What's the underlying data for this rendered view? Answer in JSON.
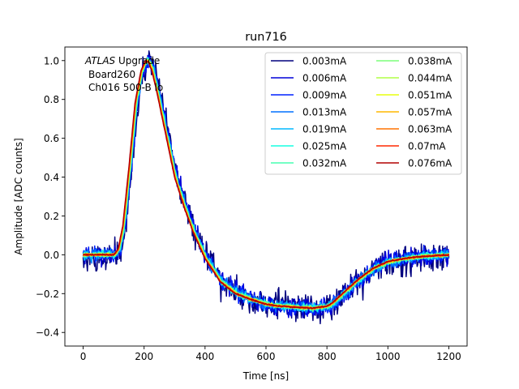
{
  "chart_data": {
    "type": "line",
    "title": "run716",
    "xlabel": "Time [ns]",
    "ylabel": "Amplitude [ADC counts]",
    "xlim": [
      -60,
      1260
    ],
    "ylim": [
      -0.47,
      1.07
    ],
    "xticks": [
      0,
      200,
      400,
      600,
      800,
      1000,
      1200
    ],
    "yticks": [
      -0.4,
      -0.2,
      0.0,
      0.2,
      0.4,
      0.6,
      0.8,
      1.0
    ],
    "xtick_labels": [
      "0",
      "200",
      "400",
      "600",
      "800",
      "1000",
      "1200"
    ],
    "ytick_labels": [
      "−0.4",
      "−0.2",
      "0.0",
      "0.2",
      "0.4",
      "0.6",
      "0.8",
      "1.0"
    ],
    "grid": false,
    "legend_position": "top-right",
    "legend_columns": 2,
    "annotation": {
      "italic": "ATLAS",
      "line1_rest": " Upgrade",
      "line2": "Board260",
      "line3": "Ch016 500-B lo"
    },
    "series": [
      {
        "name": "0.003mA",
        "color": "#00007f",
        "noise": 0.075
      },
      {
        "name": "0.006mA",
        "color": "#0000d9",
        "noise": 0.05
      },
      {
        "name": "0.009mA",
        "color": "#0020ff",
        "noise": 0.038
      },
      {
        "name": "0.013mA",
        "color": "#0070ff",
        "noise": 0.03
      },
      {
        "name": "0.019mA",
        "color": "#00b8ff",
        "noise": 0.022
      },
      {
        "name": "0.025mA",
        "color": "#16ffe1",
        "noise": 0.017
      },
      {
        "name": "0.032mA",
        "color": "#46ffb0",
        "noise": 0.013
      },
      {
        "name": "0.038mA",
        "color": "#7cff7a",
        "noise": 0.01
      },
      {
        "name": "0.044mA",
        "color": "#b0ff46",
        "noise": 0.008
      },
      {
        "name": "0.051mA",
        "color": "#e7ff0f",
        "noise": 0.007
      },
      {
        "name": "0.057mA",
        "color": "#ffb900",
        "noise": 0.006
      },
      {
        "name": "0.063mA",
        "color": "#ff7300",
        "noise": 0.005
      },
      {
        "name": "0.07mA",
        "color": "#ff2900",
        "noise": 0.004
      },
      {
        "name": "0.076mA",
        "color": "#b20000",
        "noise": 0.003
      }
    ],
    "pulse_shape": {
      "t": [
        0,
        100,
        115,
        130,
        150,
        170,
        190,
        205,
        215,
        225,
        240,
        260,
        280,
        300,
        330,
        360,
        400,
        450,
        500,
        550,
        600,
        650,
        700,
        750,
        800,
        820,
        850,
        900,
        950,
        1000,
        1050,
        1100,
        1150,
        1200
      ],
      "y": [
        0.0,
        0.0,
        0.03,
        0.15,
        0.45,
        0.78,
        0.95,
        1.0,
        0.99,
        0.95,
        0.85,
        0.7,
        0.55,
        0.4,
        0.25,
        0.12,
        -0.02,
        -0.14,
        -0.2,
        -0.23,
        -0.255,
        -0.265,
        -0.27,
        -0.275,
        -0.265,
        -0.245,
        -0.2,
        -0.13,
        -0.07,
        -0.035,
        -0.02,
        -0.01,
        -0.005,
        0.0
      ]
    }
  }
}
